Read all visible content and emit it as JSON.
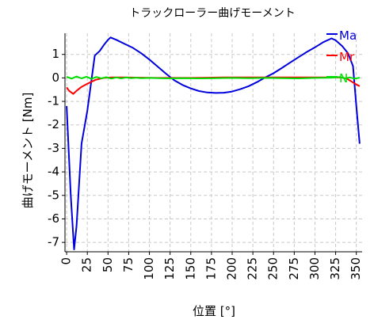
{
  "chart_data": {
    "type": "line",
    "title": "トラックローラー曲げモーメント",
    "xlabel": "位置 [°]",
    "ylabel": "曲げモーメント [Nm]",
    "xlim": [
      -2,
      357
    ],
    "ylim": [
      -7.4,
      1.9
    ],
    "xticks": [
      0,
      25,
      50,
      75,
      100,
      125,
      150,
      175,
      200,
      225,
      250,
      275,
      300,
      325,
      350
    ],
    "yticks": [
      1,
      0,
      -1,
      -2,
      -3,
      -4,
      -5,
      -6,
      -7
    ],
    "grid": true,
    "legend_position": "top-right",
    "series": [
      {
        "name": "Ma",
        "color": "#0000dd",
        "x": [
          0,
          5,
          9,
          12,
          18,
          25,
          34,
          40,
          45,
          50,
          53,
          60,
          70,
          80,
          90,
          100,
          110,
          120,
          130,
          140,
          150,
          160,
          170,
          180,
          190,
          200,
          210,
          220,
          230,
          240,
          250,
          260,
          270,
          280,
          290,
          300,
          310,
          320,
          325,
          333,
          340,
          346,
          350,
          354
        ],
        "y": [
          -1.2,
          -5.0,
          -7.3,
          -6.3,
          -2.8,
          -1.4,
          0.95,
          1.15,
          1.4,
          1.62,
          1.72,
          1.62,
          1.45,
          1.28,
          1.05,
          0.78,
          0.48,
          0.18,
          -0.1,
          -0.3,
          -0.45,
          -0.56,
          -0.62,
          -0.64,
          -0.63,
          -0.58,
          -0.48,
          -0.35,
          -0.18,
          0.02,
          0.2,
          0.42,
          0.65,
          0.88,
          1.1,
          1.3,
          1.52,
          1.68,
          1.6,
          1.35,
          1.05,
          0.5,
          -1.2,
          -2.8
        ]
      },
      {
        "name": "Mr",
        "color": "#ff0000",
        "x": [
          0,
          3,
          8,
          12,
          18,
          25,
          35,
          45,
          55,
          70,
          90,
          110,
          130,
          150,
          170,
          190,
          210,
          230,
          250,
          270,
          290,
          310,
          330,
          338,
          344,
          350,
          354
        ],
        "y": [
          -0.4,
          -0.55,
          -0.68,
          -0.55,
          -0.38,
          -0.25,
          -0.08,
          0.0,
          0.02,
          0.02,
          0.01,
          0.0,
          0.0,
          0.0,
          0.01,
          0.02,
          0.02,
          0.02,
          0.02,
          0.02,
          0.02,
          0.02,
          0.02,
          -0.02,
          -0.15,
          -0.28,
          -0.35
        ]
      },
      {
        "name": "N",
        "color": "#00dd00",
        "x": [
          0,
          6,
          12,
          18,
          24,
          30,
          36,
          42,
          48,
          54,
          60,
          66,
          72,
          78,
          84,
          90,
          100,
          120,
          140,
          160,
          180,
          200,
          220,
          240,
          260,
          280,
          300,
          320,
          330,
          336,
          342,
          348,
          354
        ],
        "y": [
          0.05,
          -0.03,
          0.06,
          -0.02,
          0.05,
          -0.04,
          0.04,
          -0.02,
          0.03,
          -0.03,
          0.02,
          -0.02,
          0.02,
          -0.01,
          0.01,
          -0.01,
          0.0,
          -0.02,
          -0.01,
          -0.02,
          -0.01,
          0.0,
          -0.01,
          0.0,
          -0.01,
          -0.02,
          0.0,
          0.01,
          0.04,
          -0.02,
          0.02,
          -0.03,
          0.01
        ]
      }
    ]
  }
}
